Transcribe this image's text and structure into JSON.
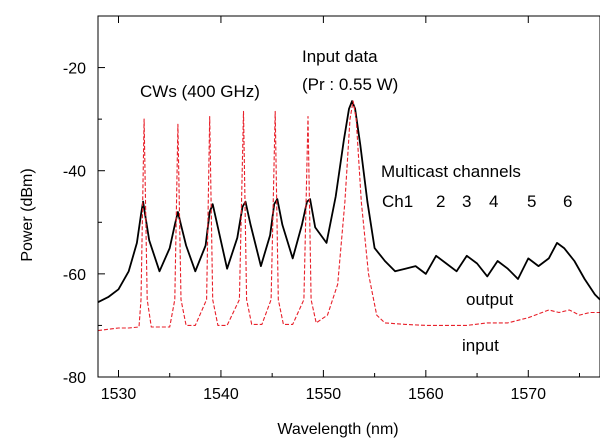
{
  "chart_data": {
    "type": "line",
    "title": "",
    "xlabel": "Wavelength (nm)",
    "ylabel": "Power (dBm)",
    "xlim": [
      1528,
      1577
    ],
    "ylim": [
      -80,
      -10
    ],
    "xticks": [
      1530,
      1540,
      1550,
      1560,
      1570
    ],
    "yticks": [
      -80,
      -60,
      -40,
      -20
    ],
    "grid": false,
    "legend": "none",
    "colors": {
      "output": "#000000",
      "input": "#e8202a"
    },
    "series": [
      {
        "name": "output",
        "line_style": "solid",
        "x": [
          1528,
          1529,
          1530,
          1531,
          1531.8,
          1532.2,
          1532.4,
          1532.6,
          1533,
          1534,
          1535,
          1535.5,
          1535.8,
          1536.1,
          1536.6,
          1537.5,
          1538.5,
          1538.9,
          1539.2,
          1539.7,
          1540.6,
          1541.6,
          1542.1,
          1542.4,
          1542.9,
          1543.9,
          1544.8,
          1545.2,
          1545.5,
          1546,
          1547,
          1547.9,
          1548.4,
          1548.7,
          1549.2,
          1550.3,
          1551.2,
          1552,
          1552.5,
          1552.8,
          1553.1,
          1553.6,
          1554.3,
          1555,
          1556,
          1557,
          1558,
          1559,
          1560,
          1561,
          1562,
          1563,
          1564,
          1565,
          1566,
          1567,
          1568,
          1569,
          1570,
          1571,
          1572,
          1572.8,
          1573.5,
          1574.5,
          1575.5,
          1576.5,
          1577
        ],
        "y": [
          -65.5,
          -64.5,
          -63,
          -59.5,
          -54,
          -48.5,
          -46,
          -48.5,
          -53.5,
          -59.5,
          -55,
          -50.5,
          -48,
          -50.5,
          -54.5,
          -59.5,
          -54.5,
          -48,
          -46.5,
          -51,
          -59,
          -53,
          -47,
          -46,
          -50.5,
          -58.5,
          -52.5,
          -46.5,
          -45.5,
          -50.5,
          -57,
          -50.5,
          -46,
          -45.5,
          -51,
          -54,
          -45,
          -34,
          -28,
          -26.5,
          -28,
          -35,
          -46,
          -55,
          -57.5,
          -59.5,
          -59,
          -58.5,
          -60,
          -56.5,
          -58,
          -59.5,
          -56.5,
          -58,
          -60.5,
          -57.5,
          -59,
          -61,
          -57,
          -58.5,
          -57,
          -54,
          -55,
          -57.5,
          -61,
          -64,
          -65
        ]
      },
      {
        "name": "input",
        "line_style": "dashed",
        "x": [
          1528,
          1530,
          1531,
          1532,
          1532.2,
          1532.5,
          1532.8,
          1533.2,
          1534,
          1535,
          1535.5,
          1535.8,
          1536.1,
          1536.6,
          1537.5,
          1538.6,
          1538.9,
          1539.2,
          1539.7,
          1540.6,
          1541.8,
          1542.2,
          1542.5,
          1543,
          1544,
          1544.9,
          1545.3,
          1545.6,
          1546.1,
          1547,
          1548.1,
          1548.5,
          1548.8,
          1549.3,
          1550.4,
          1551.4,
          1552.1,
          1552.6,
          1552.9,
          1553.2,
          1553.7,
          1554.4,
          1555.2,
          1556,
          1558,
          1560,
          1562,
          1564,
          1566,
          1568,
          1570,
          1572,
          1573,
          1574,
          1575,
          1576,
          1577
        ],
        "y": [
          -71,
          -70.5,
          -70.5,
          -70.3,
          -65,
          -30,
          -65,
          -70.3,
          -70.3,
          -70.3,
          -65,
          -31,
          -65,
          -70,
          -70,
          -65,
          -29.5,
          -65,
          -70,
          -70,
          -65,
          -28.5,
          -65,
          -69.8,
          -69.8,
          -65,
          -28.5,
          -65,
          -69.8,
          -69.8,
          -65,
          -29.5,
          -65,
          -69.5,
          -68,
          -62,
          -46,
          -30,
          -26.5,
          -30,
          -46,
          -60,
          -68,
          -69.5,
          -69.8,
          -70,
          -70,
          -70,
          -69.5,
          -69.5,
          -68.5,
          -67,
          -67.5,
          -67,
          -68,
          -67.5,
          -67.5
        ]
      }
    ],
    "annotations": {
      "cw": "CWs (400 GHz)",
      "input_data_1": "Input data",
      "input_data_2": "(Pr : 0.55 W)",
      "multicast": "Multicast channels",
      "channels": [
        "Ch1",
        "2",
        "3",
        "4",
        "5",
        "6"
      ],
      "output_label": "output",
      "input_label": "input"
    }
  }
}
